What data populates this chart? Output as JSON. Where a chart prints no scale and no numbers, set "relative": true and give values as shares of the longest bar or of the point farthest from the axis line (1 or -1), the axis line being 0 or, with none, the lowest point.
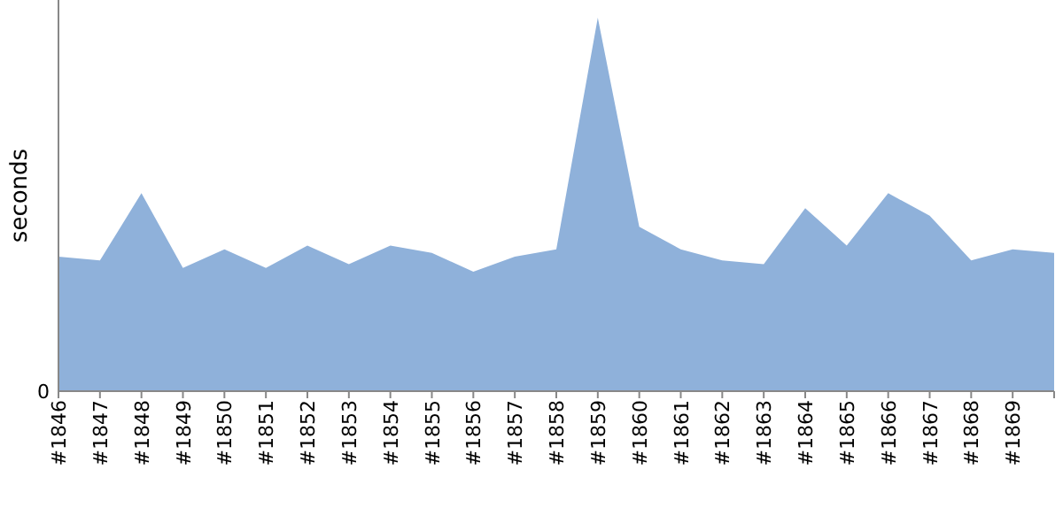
{
  "chart_data": {
    "type": "area",
    "ylabel": "seconds",
    "relative": true,
    "annotations": [
      "0"
    ],
    "categories": [
      "#1846",
      "#1847",
      "#1848",
      "#1849",
      "#1850",
      "#1851",
      "#1852",
      "#1853",
      "#1854",
      "#1855",
      "#1856",
      "#1857",
      "#1858",
      "#1859",
      "#1860",
      "#1861",
      "#1862",
      "#1863",
      "#1864",
      "#1865",
      "#1866",
      "#1867",
      "#1868",
      "#1869",
      null
    ],
    "series": [
      {
        "color": "#8fb1da",
        "values": [
          0.36,
          0.35,
          0.53,
          0.33,
          0.38,
          0.33,
          0.39,
          0.34,
          0.39,
          0.37,
          0.32,
          0.36,
          0.38,
          1,
          0.44,
          0.38,
          0.35,
          0.34,
          0.49,
          0.39,
          0.53,
          0.47,
          0.35,
          0.38,
          0.37
        ]
      }
    ]
  }
}
